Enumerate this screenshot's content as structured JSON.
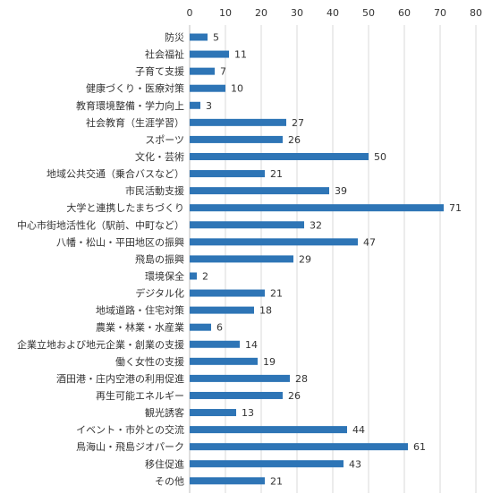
{
  "chart_data": {
    "type": "bar",
    "orientation": "horizontal",
    "title": "",
    "xlabel": "",
    "ylabel": "",
    "xlim": [
      0,
      80
    ],
    "tick_step": 10,
    "x_axis_position": "top",
    "grid": true,
    "legend": "none",
    "bar_color": "#2e75b6",
    "categories": [
      "防災",
      "社会福祉",
      "子育て支援",
      "健康づくり・医療対策",
      "教育環境整備・学力向上",
      "社会教育（生涯学習）",
      "スポーツ",
      "文化・芸術",
      "地域公共交通（乗合バスなど）",
      "市民活動支援",
      "大学と連携したまちづくり",
      "中心市街地活性化（駅前、中町など）",
      "八幡・松山・平田地区の振興",
      "飛島の振興",
      "環境保全",
      "デジタル化",
      "地域道路・住宅対策",
      "農業・林業・水産業",
      "企業立地および地元企業・創業の支援",
      "働く女性の支援",
      "酒田港・庄内空港の利用促進",
      "再生可能エネルギー",
      "観光誘客",
      "イベント・市外との交流",
      "鳥海山・飛島ジオパーク",
      "移住促進",
      "その他"
    ],
    "values": [
      5,
      11,
      7,
      10,
      3,
      27,
      26,
      50,
      21,
      39,
      71,
      32,
      47,
      29,
      2,
      21,
      18,
      6,
      14,
      19,
      28,
      26,
      13,
      44,
      61,
      43,
      21
    ]
  }
}
